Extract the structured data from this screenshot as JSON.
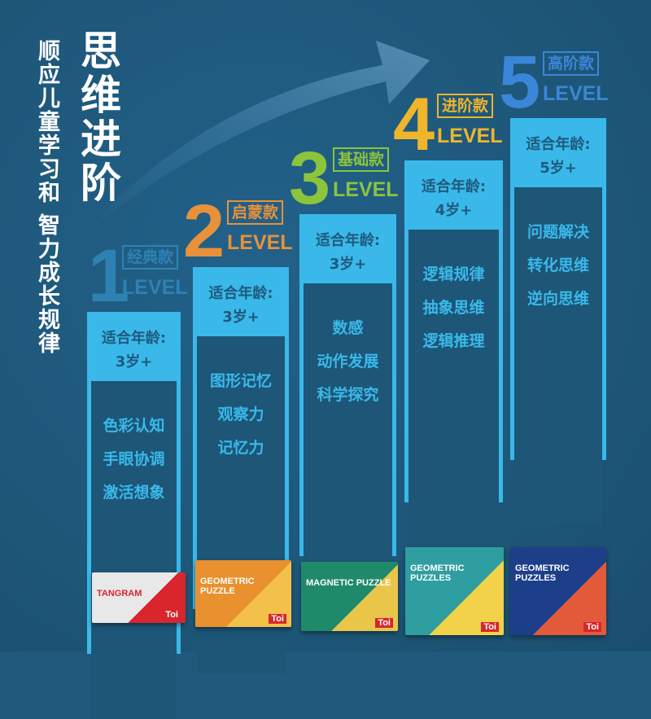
{
  "title": "思维进阶",
  "subtitle": "顺应儿童学习和 智力成长规律",
  "colors": {
    "background": "#1f5a7c",
    "column": "#3ab8ea",
    "level1": "#2d82b3",
    "level2": "#e8913a",
    "level3": "#8cc43c",
    "level4": "#f0b52c",
    "level5": "#3a86d8"
  },
  "levels": [
    {
      "number": "1",
      "tag": "经典款",
      "level": "LEVEL",
      "age_label": "适合年龄:",
      "age": "3岁+",
      "skills": [
        "色彩认知",
        "手眼协调",
        "激活想象"
      ],
      "product": {
        "name": "TANGRAM",
        "brand": "Toi"
      }
    },
    {
      "number": "2",
      "tag": "启蒙款",
      "level": "LEVEL",
      "age_label": "适合年龄:",
      "age": "3岁+",
      "skills": [
        "图形记忆",
        "观察力",
        "记忆力"
      ],
      "product": {
        "name": "GEOMETRIC PUZZLE",
        "brand": "Toi"
      }
    },
    {
      "number": "3",
      "tag": "基础款",
      "level": "LEVEL",
      "age_label": "适合年龄:",
      "age": "3岁+",
      "skills": [
        "数感",
        "动作发展",
        "科学探究"
      ],
      "product": {
        "name": "MAGNETIC PUZZLE",
        "brand": "Toi"
      }
    },
    {
      "number": "4",
      "tag": "进阶款",
      "level": "LEVEL",
      "age_label": "适合年龄:",
      "age": "4岁+",
      "skills": [
        "逻辑规律",
        "抽象思维",
        "逻辑推理"
      ],
      "product": {
        "name": "GEOMETRIC PUZZLES",
        "brand": "Toi"
      }
    },
    {
      "number": "5",
      "tag": "高阶款",
      "level": "LEVEL",
      "age_label": "适合年龄:",
      "age": "5岁+",
      "skills": [
        "问题解决",
        "转化思维",
        "逆向思维"
      ],
      "product": {
        "name": "GEOMETRIC PUZZLES",
        "brand": "Toi"
      }
    }
  ]
}
